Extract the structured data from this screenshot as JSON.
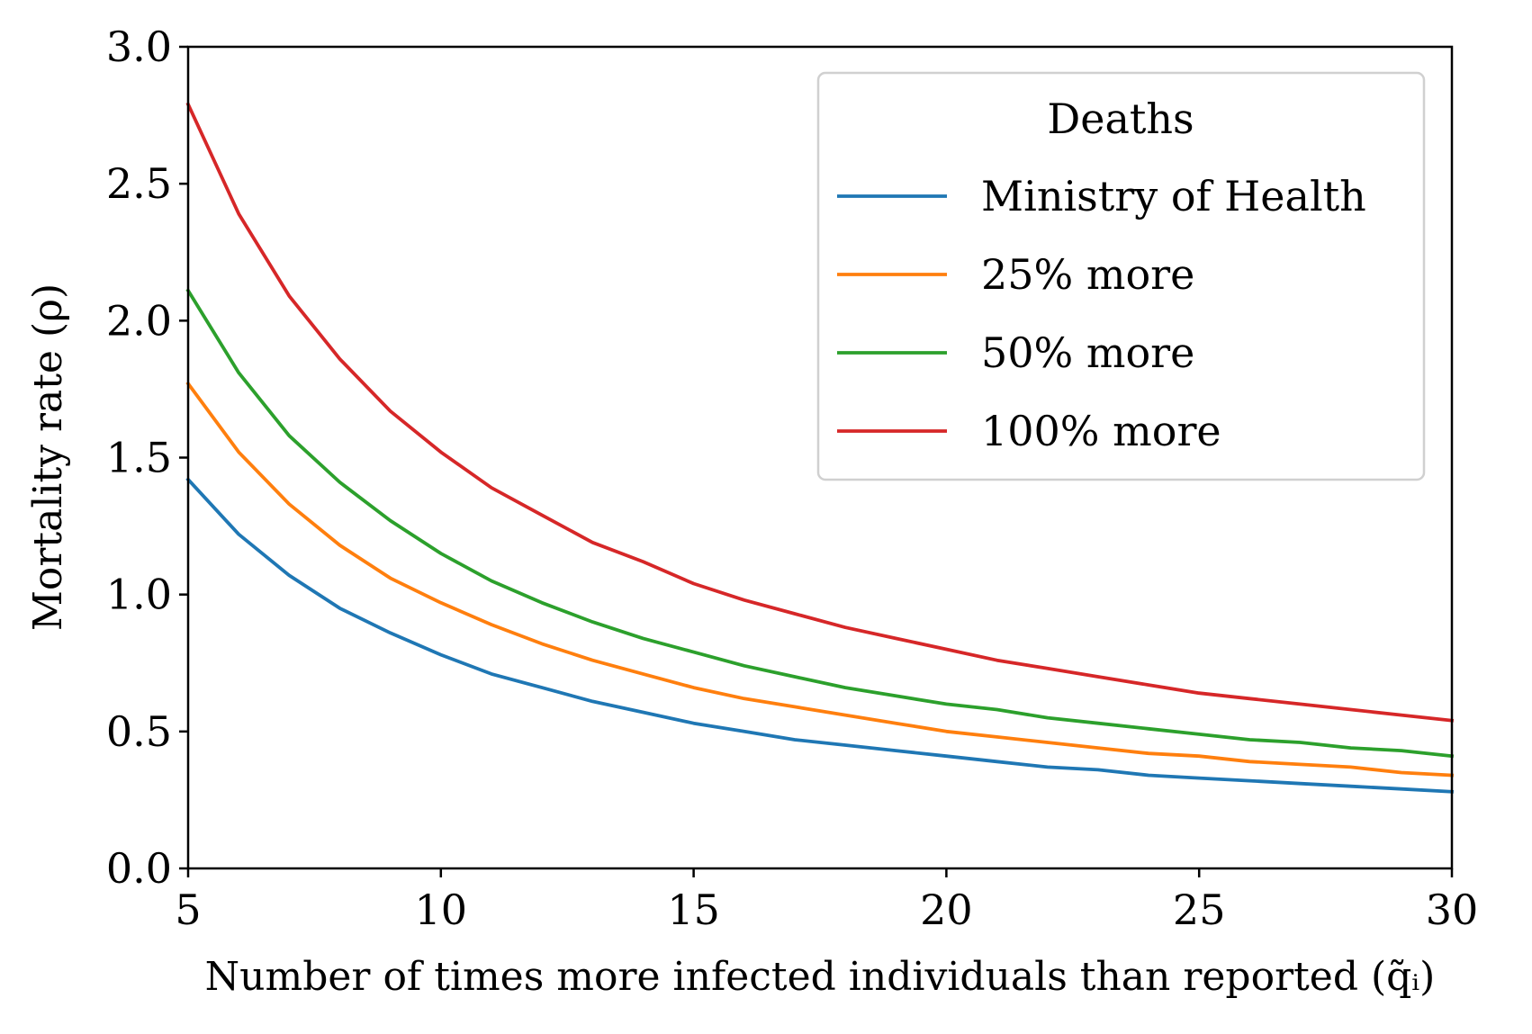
{
  "chart_data": {
    "type": "line",
    "title": "",
    "xlabel": "Number of times more infected individuals than reported (q̃ᵢ)",
    "ylabel": "Mortality rate (ρ)",
    "xlim": [
      5,
      30
    ],
    "ylim": [
      0,
      3.0
    ],
    "x_ticks": [
      5,
      10,
      15,
      20,
      25,
      30
    ],
    "x_tick_labels": [
      "5",
      "10",
      "15",
      "20",
      "25",
      "30"
    ],
    "y_ticks": [
      0,
      0.5,
      1.0,
      1.5,
      2.0,
      2.5,
      3.0
    ],
    "y_tick_labels": [
      "0.0",
      "0.5",
      "1.0",
      "1.5",
      "2.0",
      "2.5",
      "3.0"
    ],
    "grid": false,
    "legend": {
      "title": "Deaths",
      "position": "top-right"
    },
    "x": [
      5,
      6,
      7,
      8,
      9,
      10,
      11,
      12,
      13,
      14,
      15,
      16,
      17,
      18,
      19,
      20,
      21,
      22,
      23,
      24,
      25,
      26,
      27,
      28,
      29,
      30
    ],
    "series": [
      {
        "name": "Ministry of Health",
        "color": "#1f77b4",
        "values": [
          1.42,
          1.22,
          1.07,
          0.95,
          0.86,
          0.78,
          0.71,
          0.66,
          0.61,
          0.57,
          0.53,
          0.5,
          0.47,
          0.45,
          0.43,
          0.41,
          0.39,
          0.37,
          0.36,
          0.34,
          0.33,
          0.32,
          0.31,
          0.3,
          0.29,
          0.28
        ]
      },
      {
        "name": "25% more",
        "color": "#ff7f0e",
        "values": [
          1.77,
          1.52,
          1.33,
          1.18,
          1.06,
          0.97,
          0.89,
          0.82,
          0.76,
          0.71,
          0.66,
          0.62,
          0.59,
          0.56,
          0.53,
          0.5,
          0.48,
          0.46,
          0.44,
          0.42,
          0.41,
          0.39,
          0.38,
          0.37,
          0.35,
          0.34
        ]
      },
      {
        "name": "50% more",
        "color": "#2ca02c",
        "values": [
          2.11,
          1.81,
          1.58,
          1.41,
          1.27,
          1.15,
          1.05,
          0.97,
          0.9,
          0.84,
          0.79,
          0.74,
          0.7,
          0.66,
          0.63,
          0.6,
          0.58,
          0.55,
          0.53,
          0.51,
          0.49,
          0.47,
          0.46,
          0.44,
          0.43,
          0.41
        ]
      },
      {
        "name": "100% more",
        "color": "#d62728",
        "values": [
          2.79,
          2.39,
          2.09,
          1.86,
          1.67,
          1.52,
          1.39,
          1.29,
          1.19,
          1.12,
          1.04,
          0.98,
          0.93,
          0.88,
          0.84,
          0.8,
          0.76,
          0.73,
          0.7,
          0.67,
          0.64,
          0.62,
          0.6,
          0.58,
          0.56,
          0.54
        ]
      }
    ]
  }
}
